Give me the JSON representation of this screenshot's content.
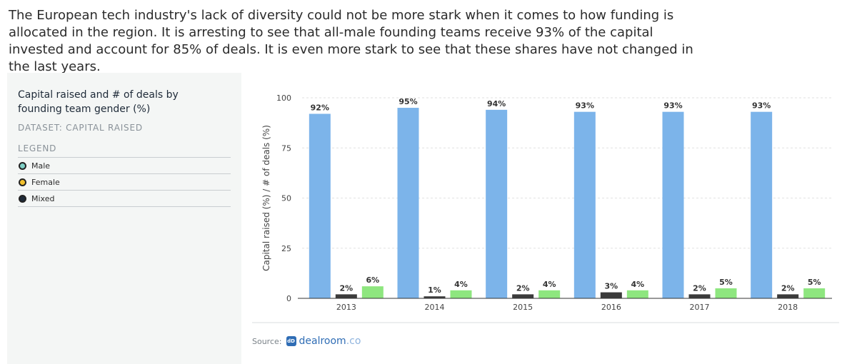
{
  "intro": "The European tech industry's lack of diversity could not be more stark when it comes to how funding is allocated in the region. It is arresting to see that all-male founding teams receive 93% of the capital invested and account for 85% of deals. It is even more stark to see that these shares have not changed in the last years.",
  "panel": {
    "title": "Capital raised and # of deals by founding team gender (%)",
    "dataset": "DATASET: CAPITAL RAISED",
    "legend_title": "LEGEND",
    "legend": [
      {
        "label": "Male",
        "color": "#7fd0c6"
      },
      {
        "label": "Female",
        "color": "#f2c12e"
      },
      {
        "label": "Mixed",
        "color": "#1e2a38"
      }
    ]
  },
  "source": {
    "label": "Source:",
    "logo_mark": "dD",
    "brand": "dealroom",
    "tld": ".co"
  },
  "colors": {
    "male_bar": "#7cb4ea",
    "mixed_bar": "#3b3b3b",
    "female_bar": "#8ee67f",
    "grid": "#e2e2e2",
    "axis": "#333333"
  },
  "chart_data": {
    "type": "bar",
    "categories": [
      "2013",
      "2014",
      "2015",
      "2016",
      "2017",
      "2018"
    ],
    "series": [
      {
        "name": "Male",
        "values": [
          92,
          95,
          94,
          93,
          93,
          93
        ],
        "labels": [
          "92%",
          "95%",
          "94%",
          "93%",
          "93%",
          "93%"
        ],
        "color": "#7cb4ea"
      },
      {
        "name": "Mixed",
        "values": [
          2,
          1,
          2,
          3,
          2,
          2
        ],
        "labels": [
          "2%",
          "1%",
          "2%",
          "3%",
          "2%",
          "2%"
        ],
        "color": "#3b3b3b"
      },
      {
        "name": "Female",
        "values": [
          6,
          4,
          4,
          4,
          5,
          5
        ],
        "labels": [
          "6%",
          "4%",
          "4%",
          "4%",
          "5%",
          "5%"
        ],
        "color": "#8ee67f"
      }
    ],
    "ylabel": "Capital raised (%) / # of deals (%)",
    "yticks": [
      0,
      25,
      50,
      75,
      100
    ],
    "ylim": [
      0,
      100
    ],
    "grid": true
  }
}
